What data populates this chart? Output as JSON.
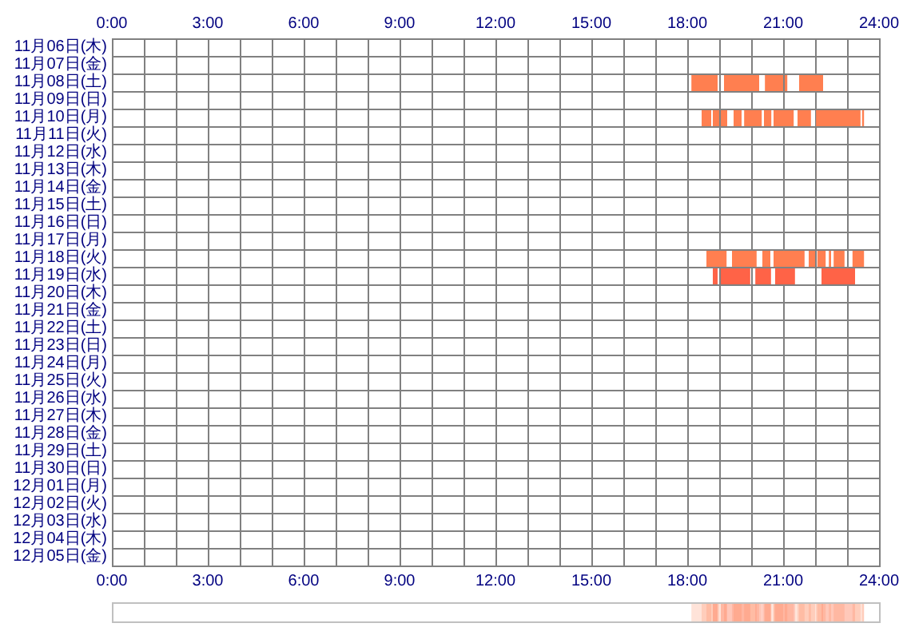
{
  "chart_data": {
    "type": "bar",
    "orientation": "horizontal",
    "categories": [
      "11月06日(木)",
      "11月07日(金)",
      "11月08日(土)",
      "11月09日(日)",
      "11月10日(月)",
      "11月11日(火)",
      "11月12日(水)",
      "11月13日(木)",
      "11月14日(金)",
      "11月15日(土)",
      "11月16日(日)",
      "11月17日(月)",
      "11月18日(火)",
      "11月19日(水)",
      "11月20日(木)",
      "11月21日(金)",
      "11月22日(土)",
      "11月23日(日)",
      "11月24日(月)",
      "11月25日(火)",
      "11月26日(水)",
      "11月27日(木)",
      "11月28日(金)",
      "11月29日(土)",
      "11月30日(日)",
      "12月01日(月)",
      "12月02日(火)",
      "12月03日(水)",
      "12月04日(木)",
      "12月05日(金)"
    ],
    "series": [
      {
        "values": [
          null,
          null,
          0.82,
          null,
          0.3,
          null,
          null,
          null,
          null,
          null,
          null,
          null,
          0.63,
          0.15,
          null,
          null,
          null,
          null,
          null,
          null,
          null,
          null,
          null,
          null,
          null,
          null,
          null,
          null,
          null,
          null
        ],
        "base": [
          null,
          null,
          18.13,
          null,
          18.45,
          null,
          null,
          null,
          null,
          null,
          null,
          null,
          18.6,
          18.8,
          null,
          null,
          null,
          null,
          null,
          null,
          null,
          null,
          null,
          null,
          null,
          null,
          null,
          null,
          null,
          null
        ],
        "colors": [
          null,
          null,
          "#ff7f50",
          null,
          "#ff7f50",
          null,
          null,
          null,
          null,
          null,
          null,
          null,
          "#ff7f50",
          "#ff6347",
          null,
          null,
          null,
          null,
          null,
          null,
          null,
          null,
          null,
          null,
          null,
          null,
          null,
          null,
          null,
          null
        ]
      },
      {
        "values": [
          null,
          null,
          1.1,
          null,
          0.2,
          null,
          null,
          null,
          null,
          null,
          null,
          null,
          0.77,
          0.92,
          null,
          null,
          null,
          null,
          null,
          null,
          null,
          null,
          null,
          null,
          null,
          null,
          null,
          null,
          null,
          null
        ],
        "base": [
          null,
          null,
          19.15,
          null,
          18.8,
          null,
          null,
          null,
          null,
          null,
          null,
          null,
          19.4,
          19.05,
          null,
          null,
          null,
          null,
          null,
          null,
          null,
          null,
          null,
          null,
          null,
          null,
          null,
          null,
          null,
          null
        ],
        "colors": [
          null,
          null,
          "#ff7f50",
          null,
          "#ff7f50",
          null,
          null,
          null,
          null,
          null,
          null,
          null,
          "#ff7f50",
          "#ff6347",
          null,
          null,
          null,
          null,
          null,
          null,
          null,
          null,
          null,
          null,
          null,
          null,
          null,
          null,
          null,
          null
        ]
      },
      {
        "values": [
          null,
          null,
          0.57,
          null,
          0.2,
          null,
          null,
          null,
          null,
          null,
          null,
          null,
          0.25,
          0.49,
          null,
          null,
          null,
          null,
          null,
          null,
          null,
          null,
          null,
          null,
          null,
          null,
          null,
          null,
          null,
          null
        ],
        "base": [
          null,
          null,
          20.43,
          null,
          19.05,
          null,
          null,
          null,
          null,
          null,
          null,
          null,
          20.35,
          20.13,
          null,
          null,
          null,
          null,
          null,
          null,
          null,
          null,
          null,
          null,
          null,
          null,
          null,
          null,
          null,
          null
        ],
        "colors": [
          null,
          null,
          "#ff7f50",
          null,
          "#ff7f50",
          null,
          null,
          null,
          null,
          null,
          null,
          null,
          "#ff7f50",
          "#ff6347",
          null,
          null,
          null,
          null,
          null,
          null,
          null,
          null,
          null,
          null,
          null,
          null,
          null,
          null,
          null,
          null
        ]
      },
      {
        "values": [
          null,
          null,
          0.08,
          null,
          0.25,
          null,
          null,
          null,
          null,
          null,
          null,
          null,
          0.97,
          0.62,
          null,
          null,
          null,
          null,
          null,
          null,
          null,
          null,
          null,
          null,
          null,
          null,
          null,
          null,
          null,
          null
        ],
        "base": [
          null,
          null,
          21.05,
          null,
          19.45,
          null,
          null,
          null,
          null,
          null,
          null,
          null,
          20.7,
          20.75,
          null,
          null,
          null,
          null,
          null,
          null,
          null,
          null,
          null,
          null,
          null,
          null,
          null,
          null,
          null,
          null
        ],
        "colors": [
          null,
          null,
          "#ff7f50",
          null,
          "#ff7f50",
          null,
          null,
          null,
          null,
          null,
          null,
          null,
          "#ff7f50",
          "#ff6347",
          null,
          null,
          null,
          null,
          null,
          null,
          null,
          null,
          null,
          null,
          null,
          null,
          null,
          null,
          null,
          null
        ]
      },
      {
        "values": [
          null,
          null,
          0.75,
          null,
          0.55,
          null,
          null,
          null,
          null,
          null,
          null,
          null,
          0.2,
          1.05,
          null,
          null,
          null,
          null,
          null,
          null,
          null,
          null,
          null,
          null,
          null,
          null,
          null,
          null,
          null,
          null
        ],
        "base": [
          null,
          null,
          21.5,
          null,
          19.78,
          null,
          null,
          null,
          null,
          null,
          null,
          null,
          21.8,
          22.2,
          null,
          null,
          null,
          null,
          null,
          null,
          null,
          null,
          null,
          null,
          null,
          null,
          null,
          null,
          null,
          null
        ],
        "colors": [
          null,
          null,
          "#ff7f50",
          null,
          "#ff7f50",
          null,
          null,
          null,
          null,
          null,
          null,
          null,
          "#ff7f50",
          "#ff6347",
          null,
          null,
          null,
          null,
          null,
          null,
          null,
          null,
          null,
          null,
          null,
          null,
          null,
          null,
          null,
          null
        ]
      },
      {
        "values": [
          null,
          null,
          null,
          null,
          0.23,
          null,
          null,
          null,
          null,
          null,
          null,
          null,
          0.26,
          null,
          null,
          null,
          null,
          null,
          null,
          null,
          null,
          null,
          null,
          null,
          null,
          null,
          null,
          null,
          null,
          null
        ],
        "base": [
          null,
          null,
          null,
          null,
          20.4,
          null,
          null,
          null,
          null,
          null,
          null,
          null,
          22.07,
          null,
          null,
          null,
          null,
          null,
          null,
          null,
          null,
          null,
          null,
          null,
          null,
          null,
          null,
          null,
          null,
          null
        ],
        "colors": [
          null,
          null,
          null,
          null,
          "#ff7f50",
          null,
          null,
          null,
          null,
          null,
          null,
          null,
          "#ff7f50",
          null,
          null,
          null,
          null,
          null,
          null,
          null,
          null,
          null,
          null,
          null,
          null,
          null,
          null,
          null,
          null,
          null
        ]
      },
      {
        "values": [
          null,
          null,
          null,
          null,
          0.63,
          null,
          null,
          null,
          null,
          null,
          null,
          null,
          0.07,
          null,
          null,
          null,
          null,
          null,
          null,
          null,
          null,
          null,
          null,
          null,
          null,
          null,
          null,
          null,
          null,
          null
        ],
        "base": [
          null,
          null,
          null,
          null,
          20.7,
          null,
          null,
          null,
          null,
          null,
          null,
          null,
          22.43,
          null,
          null,
          null,
          null,
          null,
          null,
          null,
          null,
          null,
          null,
          null,
          null,
          null,
          null,
          null,
          null,
          null
        ],
        "colors": [
          null,
          null,
          null,
          null,
          "#ff7f50",
          null,
          null,
          null,
          null,
          null,
          null,
          null,
          "#ff7f50",
          null,
          null,
          null,
          null,
          null,
          null,
          null,
          null,
          null,
          null,
          null,
          null,
          null,
          null,
          null,
          null,
          null
        ]
      },
      {
        "values": [
          null,
          null,
          null,
          null,
          0.42,
          null,
          null,
          null,
          null,
          null,
          null,
          null,
          0.34,
          null,
          null,
          null,
          null,
          null,
          null,
          null,
          null,
          null,
          null,
          null,
          null,
          null,
          null,
          null,
          null,
          null
        ],
        "base": [
          null,
          null,
          null,
          null,
          21.45,
          null,
          null,
          null,
          null,
          null,
          null,
          null,
          22.58,
          null,
          null,
          null,
          null,
          null,
          null,
          null,
          null,
          null,
          null,
          null,
          null,
          null,
          null,
          null,
          null,
          null
        ],
        "colors": [
          null,
          null,
          null,
          null,
          "#ff7f50",
          null,
          null,
          null,
          null,
          null,
          null,
          null,
          "#ff7f50",
          null,
          null,
          null,
          null,
          null,
          null,
          null,
          null,
          null,
          null,
          null,
          null,
          null,
          null,
          null,
          null,
          null
        ]
      },
      {
        "values": [
          null,
          null,
          null,
          null,
          1.39,
          null,
          null,
          null,
          null,
          null,
          null,
          null,
          0.36,
          null,
          null,
          null,
          null,
          null,
          null,
          null,
          null,
          null,
          null,
          null,
          null,
          null,
          null,
          null,
          null,
          null
        ],
        "base": [
          null,
          null,
          null,
          null,
          22.03,
          null,
          null,
          null,
          null,
          null,
          null,
          null,
          23.17,
          null,
          null,
          null,
          null,
          null,
          null,
          null,
          null,
          null,
          null,
          null,
          null,
          null,
          null,
          null,
          null,
          null
        ],
        "colors": [
          null,
          null,
          null,
          null,
          "#ff7f50",
          null,
          null,
          null,
          null,
          null,
          null,
          null,
          "#ff7f50",
          null,
          null,
          null,
          null,
          null,
          null,
          null,
          null,
          null,
          null,
          null,
          null,
          null,
          null,
          null,
          null,
          null
        ]
      },
      {
        "values": [
          null,
          null,
          null,
          null,
          0.06,
          null,
          null,
          null,
          null,
          null,
          null,
          null,
          null,
          null,
          null,
          null,
          null,
          null,
          null,
          null,
          null,
          null,
          null,
          null,
          null,
          null,
          null,
          null,
          null,
          null
        ],
        "base": [
          null,
          null,
          null,
          null,
          23.47,
          null,
          null,
          null,
          null,
          null,
          null,
          null,
          null,
          null,
          null,
          null,
          null,
          null,
          null,
          null,
          null,
          null,
          null,
          null,
          null,
          null,
          null,
          null,
          null,
          null
        ],
        "colors": [
          null,
          null,
          null,
          null,
          "#ff7f50",
          null,
          null,
          null,
          null,
          null,
          null,
          null,
          null,
          null,
          null,
          null,
          null,
          null,
          null,
          null,
          null,
          null,
          null,
          null,
          null,
          null,
          null,
          null,
          null,
          null
        ]
      }
    ],
    "xlim": [
      0,
      24
    ],
    "xticks": [
      {
        "value": 0,
        "label": "0:00"
      },
      {
        "value": 1,
        "label": null
      },
      {
        "value": 2,
        "label": null
      },
      {
        "value": 3,
        "label": "3:00"
      },
      {
        "value": 4,
        "label": null
      },
      {
        "value": 5,
        "label": null
      },
      {
        "value": 6,
        "label": "6:00"
      },
      {
        "value": 7,
        "label": null
      },
      {
        "value": 8,
        "label": null
      },
      {
        "value": 9,
        "label": "9:00"
      },
      {
        "value": 10,
        "label": null
      },
      {
        "value": 11,
        "label": null
      },
      {
        "value": 12,
        "label": "12:00"
      },
      {
        "value": 13,
        "label": null
      },
      {
        "value": 14,
        "label": null
      },
      {
        "value": 15,
        "label": "15:00"
      },
      {
        "value": 16,
        "label": null
      },
      {
        "value": 17,
        "label": null
      },
      {
        "value": 18,
        "label": "18:00"
      },
      {
        "value": 19,
        "label": null
      },
      {
        "value": 20,
        "label": null
      },
      {
        "value": 21,
        "label": "21:00"
      },
      {
        "value": 22,
        "label": null
      },
      {
        "value": 23,
        "label": null
      },
      {
        "value": 24,
        "label": "24:00"
      }
    ],
    "x2lim": [
      0,
      24
    ],
    "x2ticks": [
      {
        "value": 0,
        "label": "0:00"
      },
      {
        "value": 3,
        "label": "3:00"
      },
      {
        "value": 6,
        "label": "6:00"
      },
      {
        "value": 9,
        "label": "9:00"
      },
      {
        "value": 12,
        "label": "12:00"
      },
      {
        "value": 15,
        "label": "15:00"
      },
      {
        "value": 18,
        "label": "18:00"
      },
      {
        "value": 21,
        "label": "21:00"
      },
      {
        "value": 24,
        "label": "24:00"
      }
    ],
    "grid": true
  }
}
